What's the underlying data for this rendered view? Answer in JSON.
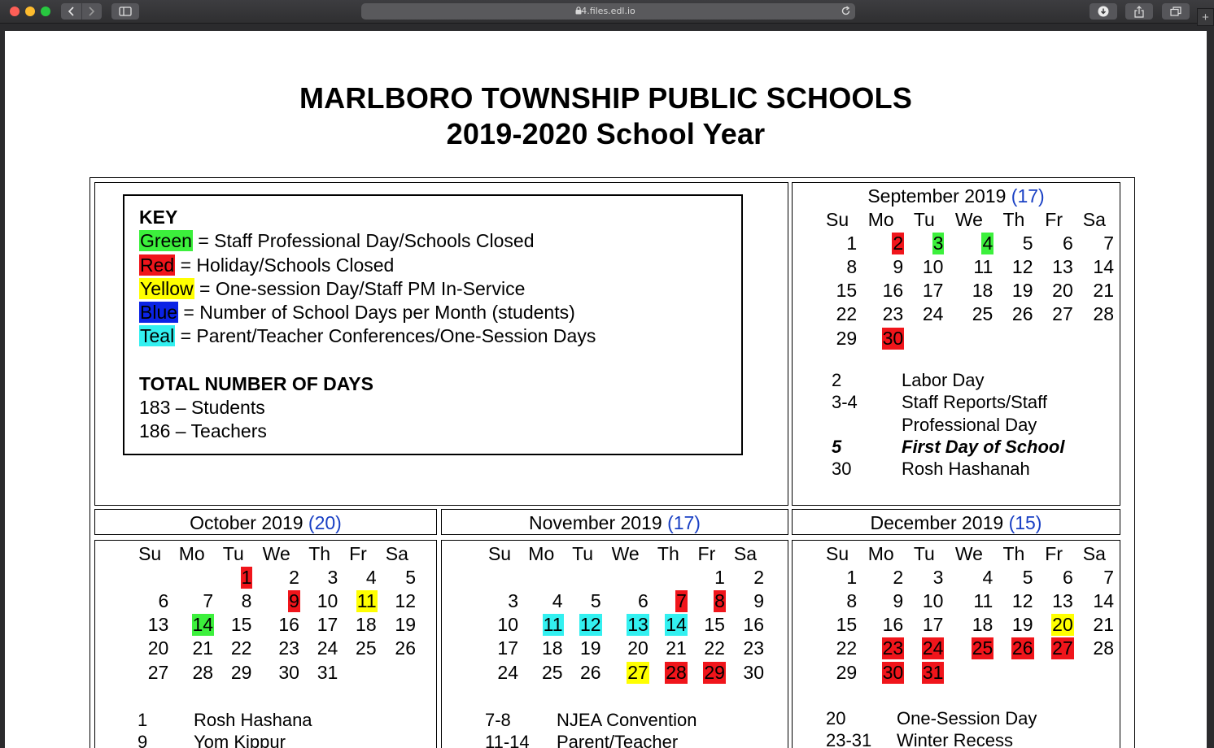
{
  "browser": {
    "url": "4.files.edl.io",
    "icons": [
      "back-icon",
      "forward-icon",
      "sidebar-icon",
      "lock-icon",
      "reload-icon",
      "download-icon",
      "share-icon",
      "tabs-icon",
      "plus-icon"
    ]
  },
  "header": {
    "line1": "MARLBORO TOWNSHIP PUBLIC SCHOOLS",
    "line2": "2019-2020 School Year"
  },
  "key": {
    "title": "KEY",
    "items": [
      {
        "label": "Green",
        "text": " = Staff Professional Day/Schools Closed",
        "color": "#3cf03c"
      },
      {
        "label": "Red",
        "text": " = Holiday/Schools Closed",
        "color": "#f0151b"
      },
      {
        "label": "Yellow",
        "text": " = One-session Day/Staff PM In-Service",
        "color": "#ffff00"
      },
      {
        "label": "Blue",
        "text": " = Number of School Days per Month (students)",
        "color": "#0b23e5"
      },
      {
        "label": "Teal",
        "text": " = Parent/Teacher Conferences/One-Session Days",
        "color": "#33f0f0"
      }
    ],
    "total_title": "TOTAL NUMBER OF DAYS",
    "totals": [
      "183 – Students",
      "186 – Teachers"
    ]
  },
  "weekdays": [
    "Su",
    "Mo",
    "Tu",
    "We",
    "Th",
    "Fr",
    "Sa"
  ],
  "months": {
    "sep": {
      "name": "September 2019",
      "count": "(17)",
      "weeks": [
        [
          "1",
          "2",
          "3",
          "4",
          "5",
          "6",
          "7"
        ],
        [
          "8",
          "9",
          "10",
          "11",
          "12",
          "13",
          "14"
        ],
        [
          "15",
          "16",
          "17",
          "18",
          "19",
          "20",
          "21"
        ],
        [
          "22",
          "23",
          "24",
          "25",
          "26",
          "27",
          "28"
        ],
        [
          "29",
          "30",
          "",
          "",
          "",
          "",
          ""
        ]
      ],
      "marked": {
        "2": "red",
        "3": "green",
        "4": "green",
        "30": "red"
      },
      "events": [
        {
          "date": "2",
          "text": "Labor Day"
        },
        {
          "date": "3-4",
          "text": "Staff Reports/Staff"
        },
        {
          "date": "",
          "text": "Professional Day"
        },
        {
          "date": "5",
          "text": "First Day of School",
          "emphasis": true
        },
        {
          "date": "30",
          "text": "Rosh Hashanah"
        }
      ]
    },
    "oct": {
      "name": "October 2019",
      "count": "(20)",
      "weeks": [
        [
          "",
          "",
          "1",
          "2",
          "3",
          "4",
          "5"
        ],
        [
          "6",
          "7",
          "8",
          "9",
          "10",
          "11",
          "12"
        ],
        [
          "13",
          "14",
          "15",
          "16",
          "17",
          "18",
          "19"
        ],
        [
          "20",
          "21",
          "22",
          "23",
          "24",
          "25",
          "26"
        ],
        [
          "27",
          "28",
          "29",
          "30",
          "31",
          "",
          ""
        ]
      ],
      "marked": {
        "1": "red",
        "9": "red",
        "11": "yellow",
        "14": "green"
      },
      "events": [
        {
          "date": "1",
          "text": "Rosh Hashana"
        },
        {
          "date": "9",
          "text": "Yom Kippur"
        }
      ]
    },
    "nov": {
      "name": "November 2019",
      "count": "(17)",
      "weeks": [
        [
          "",
          "",
          "",
          "",
          "",
          "1",
          "2"
        ],
        [
          "3",
          "4",
          "5",
          "6",
          "7",
          "8",
          "9"
        ],
        [
          "10",
          "11",
          "12",
          "13",
          "14",
          "15",
          "16"
        ],
        [
          "17",
          "18",
          "19",
          "20",
          "21",
          "22",
          "23"
        ],
        [
          "24",
          "25",
          "26",
          "27",
          "28",
          "29",
          "30"
        ]
      ],
      "marked": {
        "7": "red",
        "8": "red",
        "11": "teal",
        "12": "teal",
        "13": "teal",
        "14": "teal",
        "27": "yellow",
        "28": "red",
        "29": "red"
      },
      "events": [
        {
          "date": "7-8",
          "text": "NJEA Convention"
        },
        {
          "date": "11-14",
          "text": "Parent/Teacher"
        }
      ]
    },
    "dec": {
      "name": "December 2019",
      "count": "(15)",
      "weeks": [
        [
          "1",
          "2",
          "3",
          "4",
          "5",
          "6",
          "7"
        ],
        [
          "8",
          "9",
          "10",
          "11",
          "12",
          "13",
          "14"
        ],
        [
          "15",
          "16",
          "17",
          "18",
          "19",
          "20",
          "21"
        ],
        [
          "22",
          "23",
          "24",
          "25",
          "26",
          "27",
          "28"
        ],
        [
          "29",
          "30",
          "31",
          "",
          "",
          "",
          ""
        ]
      ],
      "marked": {
        "20": "yellow",
        "23": "red",
        "24": "red",
        "25": "red",
        "26": "red",
        "27": "red",
        "30": "red",
        "31": "red"
      },
      "events": [
        {
          "date": "20",
          "text": "One-Session Day"
        },
        {
          "date": "23-31",
          "text": "Winter Recess"
        }
      ]
    }
  }
}
